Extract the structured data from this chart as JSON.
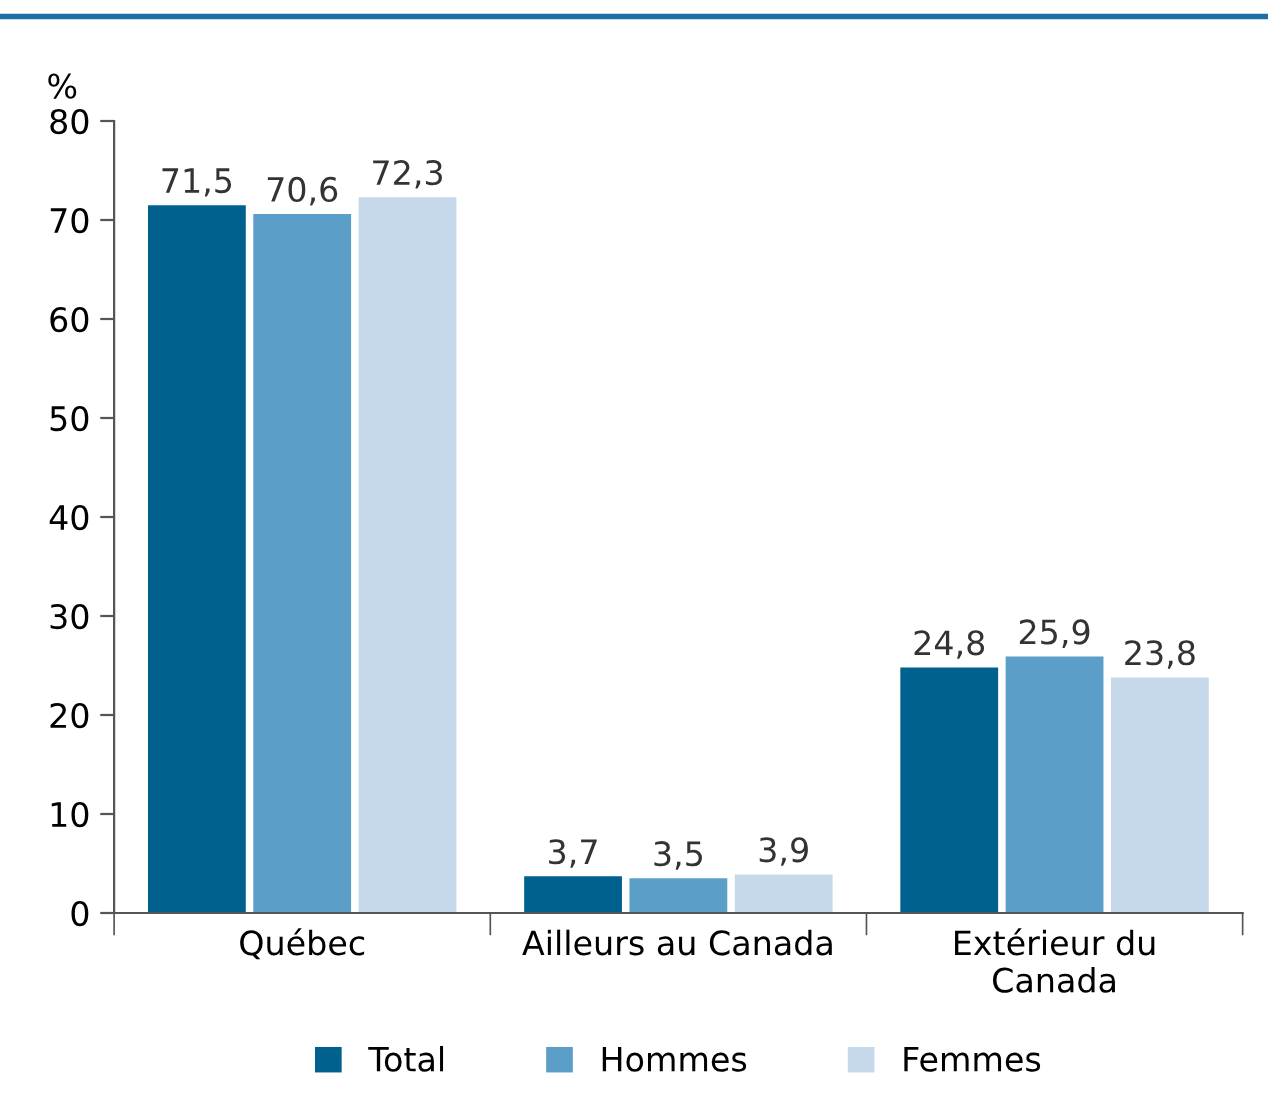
{
  "chart_data": {
    "type": "bar",
    "ylabel": "%",
    "categories": [
      "Québec",
      "Ailleurs au Canada",
      "Extérieur du\nCanada"
    ],
    "series": [
      {
        "name": "Total",
        "color": "#00618f",
        "values": [
          71.5,
          3.7,
          24.8
        ],
        "value_labels": [
          "71,5",
          "3,7",
          "24,8"
        ]
      },
      {
        "name": "Hommes",
        "color": "#5b9ec8",
        "values": [
          70.6,
          3.5,
          25.9
        ],
        "value_labels": [
          "70,6",
          "3,5",
          "25,9"
        ]
      },
      {
        "name": "Femmes",
        "color": "#c6d9ea",
        "values": [
          72.3,
          3.9,
          23.8
        ],
        "value_labels": [
          "72,3",
          "3,9",
          "23,8"
        ]
      }
    ],
    "ylim": [
      0,
      80
    ],
    "yticks": [
      0,
      10,
      20,
      30,
      40,
      50,
      60,
      70,
      80
    ],
    "grid": false,
    "legend": "bottom"
  }
}
